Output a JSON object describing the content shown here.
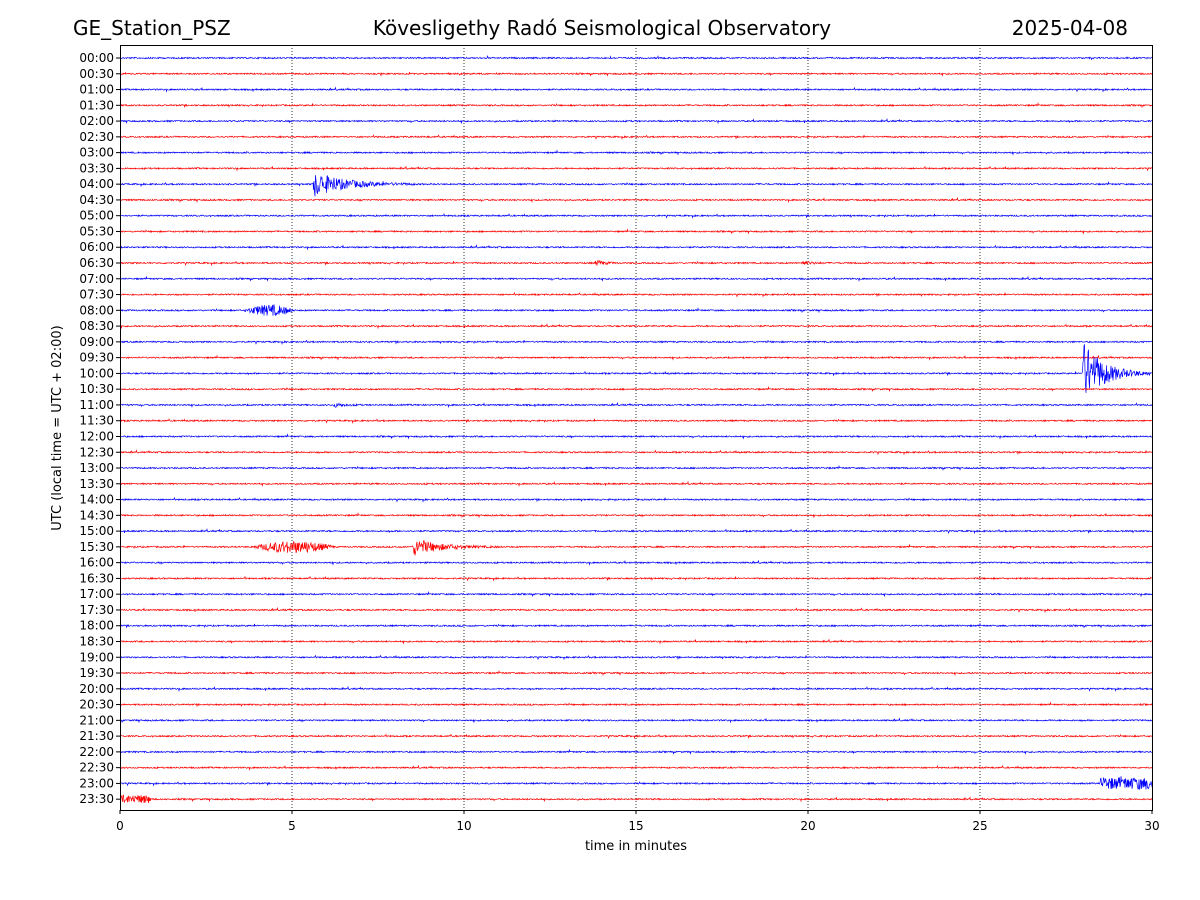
{
  "header": {
    "station": "GE_Station_PSZ",
    "title": "Kövesligethy Radó Seismological Observatory",
    "date": "2025-04-08"
  },
  "chart_data": {
    "type": "line",
    "title": "Kövesligethy Radó Seismological Observatory",
    "xlabel": "time in minutes",
    "ylabel": "UTC (local time = UTC + 02:00)",
    "xlim": [
      0,
      30
    ],
    "xticks": [
      "0",
      "5",
      "10",
      "15",
      "20",
      "25",
      "30"
    ],
    "grid_x": [
      5,
      10,
      15,
      20,
      25
    ],
    "grid_style": "vertical dotted",
    "colors": {
      "even_trace": "#0000ff",
      "odd_trace": "#ff0000"
    },
    "traces": [
      {
        "label": "00:00",
        "events": []
      },
      {
        "label": "00:30",
        "events": []
      },
      {
        "label": "01:00",
        "events": []
      },
      {
        "label": "01:30",
        "events": []
      },
      {
        "label": "02:00",
        "events": []
      },
      {
        "label": "02:30",
        "events": []
      },
      {
        "label": "03:00",
        "events": []
      },
      {
        "label": "03:30",
        "events": []
      },
      {
        "label": "04:00",
        "events": [
          {
            "start": 5.6,
            "amp": 1.3,
            "duration": 3.0
          }
        ]
      },
      {
        "label": "04:30",
        "events": []
      },
      {
        "label": "05:00",
        "events": []
      },
      {
        "label": "05:30",
        "events": []
      },
      {
        "label": "06:00",
        "events": []
      },
      {
        "label": "06:30",
        "events": [
          {
            "start": 13.8,
            "amp": 0.35,
            "duration": 0.8
          },
          {
            "start": 19.8,
            "amp": 0.25,
            "duration": 0.8
          }
        ]
      },
      {
        "label": "07:00",
        "events": []
      },
      {
        "label": "07:30",
        "events": []
      },
      {
        "label": "08:00",
        "events": [
          {
            "start": 3.6,
            "amp": 0.5,
            "duration": 1.5,
            "emergent": true
          }
        ]
      },
      {
        "label": "08:30",
        "events": []
      },
      {
        "label": "09:00",
        "events": []
      },
      {
        "label": "09:30",
        "events": []
      },
      {
        "label": "10:00",
        "events": [
          {
            "start": 27.95,
            "amp": 3.4,
            "duration": 2.0
          }
        ]
      },
      {
        "label": "10:30",
        "events": []
      },
      {
        "label": "11:00",
        "events": [
          {
            "start": 6.2,
            "amp": 0.25,
            "duration": 0.8
          }
        ]
      },
      {
        "label": "11:30",
        "events": []
      },
      {
        "label": "12:00",
        "events": []
      },
      {
        "label": "12:30",
        "events": []
      },
      {
        "label": "13:00",
        "events": []
      },
      {
        "label": "13:30",
        "events": []
      },
      {
        "label": "14:00",
        "events": []
      },
      {
        "label": "14:30",
        "events": []
      },
      {
        "label": "15:00",
        "events": []
      },
      {
        "label": "15:30",
        "events": [
          {
            "start": 3.8,
            "amp": 0.55,
            "duration": 2.5,
            "emergent": true
          },
          {
            "start": 8.5,
            "amp": 0.9,
            "duration": 2.5
          }
        ]
      },
      {
        "label": "16:00",
        "events": []
      },
      {
        "label": "16:30",
        "events": []
      },
      {
        "label": "17:00",
        "events": []
      },
      {
        "label": "17:30",
        "events": []
      },
      {
        "label": "18:00",
        "events": []
      },
      {
        "label": "18:30",
        "events": []
      },
      {
        "label": "19:00",
        "events": []
      },
      {
        "label": "19:30",
        "events": []
      },
      {
        "label": "20:00",
        "events": []
      },
      {
        "label": "20:30",
        "events": []
      },
      {
        "label": "21:00",
        "events": []
      },
      {
        "label": "21:30",
        "events": []
      },
      {
        "label": "22:00",
        "events": []
      },
      {
        "label": "22:30",
        "events": []
      },
      {
        "label": "23:00",
        "events": [
          {
            "start": 28.5,
            "amp": 0.55,
            "duration": 1.5,
            "sustained": true
          }
        ]
      },
      {
        "label": "23:30",
        "events": [
          {
            "start": 0.0,
            "amp": 0.35,
            "duration": 0.9,
            "sustained": true
          }
        ]
      }
    ]
  }
}
